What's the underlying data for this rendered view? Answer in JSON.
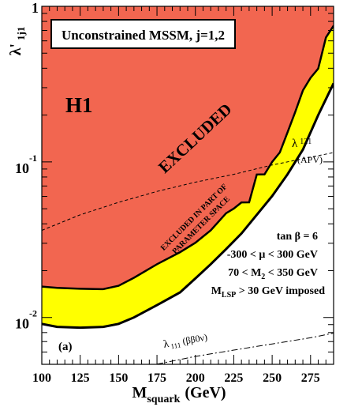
{
  "chart_data": {
    "type": "area",
    "title": "Unconstrained MSSM, j=1,2",
    "xlabel": {
      "main": "M",
      "sub": "squark",
      "unit": "(GeV)"
    },
    "ylabel": {
      "main": "λ",
      "prime": "'",
      "sub": "1j1"
    },
    "xlim": [
      100,
      290
    ],
    "ylim": [
      0.005,
      1
    ],
    "yscale": "log",
    "x_ticks": [
      100,
      125,
      150,
      175,
      200,
      225,
      250,
      275
    ],
    "y_ticks": [
      {
        "base": "10",
        "exp": "-2",
        "value": 0.01
      },
      {
        "base": "10",
        "exp": "-1",
        "value": 0.1
      },
      {
        "base": "",
        "exp": "",
        "value": 1,
        "label": "1"
      }
    ],
    "colors": {
      "excluded": "#f26650",
      "partial": "#ffff00",
      "frame": "#000000"
    },
    "series": [
      {
        "role": "excluded-boundary",
        "x": [
          100,
          110,
          125,
          140,
          150,
          160,
          175,
          190,
          200,
          210,
          220,
          225,
          230,
          235,
          240,
          245,
          250,
          255,
          260,
          265,
          270,
          275,
          280,
          285,
          290
        ],
        "y": [
          0.0158,
          0.0155,
          0.0153,
          0.0152,
          0.016,
          0.018,
          0.022,
          0.0263,
          0.0302,
          0.0363,
          0.0468,
          0.0501,
          0.0549,
          0.055,
          0.083,
          0.0832,
          0.1,
          0.115,
          0.155,
          0.209,
          0.288,
          0.347,
          0.398,
          0.631,
          0.75
        ]
      },
      {
        "role": "partial-boundary",
        "x": [
          100,
          110,
          125,
          140,
          150,
          160,
          175,
          190,
          200,
          210,
          220,
          230,
          240,
          250,
          260,
          270,
          280,
          290
        ],
        "y": [
          0.0091,
          0.0087,
          0.0086,
          0.0087,
          0.0091,
          0.01,
          0.012,
          0.0145,
          0.0178,
          0.022,
          0.0275,
          0.0347,
          0.0457,
          0.0603,
          0.0832,
          0.12,
          0.2,
          0.32
        ]
      },
      {
        "role": "apv-limit",
        "name_main": "λ",
        "name_sub": "121",
        "name_note": "(APV)",
        "x": [
          100,
          125,
          150,
          175,
          200,
          225,
          250,
          275,
          290
        ],
        "y": [
          0.0363,
          0.0457,
          0.055,
          0.0646,
          0.0741,
          0.0832,
          0.0955,
          0.1072,
          0.1148
        ]
      },
      {
        "role": "double-beta-limit",
        "name_main": "λ",
        "name_sub": "111",
        "name_note": "(ββ0ν)",
        "x": [
          175,
          200,
          225,
          250,
          275,
          290
        ],
        "y": [
          0.00501,
          0.00562,
          0.00617,
          0.00676,
          0.00741,
          0.00794
        ]
      }
    ],
    "annotations": {
      "h1": "H1",
      "excluded": "EXCLUDED",
      "partial_line1": "EXCLUDED IN PART OF",
      "partial_line2": "PARAMETER SPACE",
      "tanb": "tan β = 6",
      "mu": "-300 < μ < 300 GeV",
      "m2": "70 < M",
      "m2_sub": "2",
      "m2_tail": " < 350 GeV",
      "mlsp": "M",
      "mlsp_sub": "LSP",
      "mlsp_tail": " > 30 GeV imposed",
      "panel": "(a)"
    }
  }
}
